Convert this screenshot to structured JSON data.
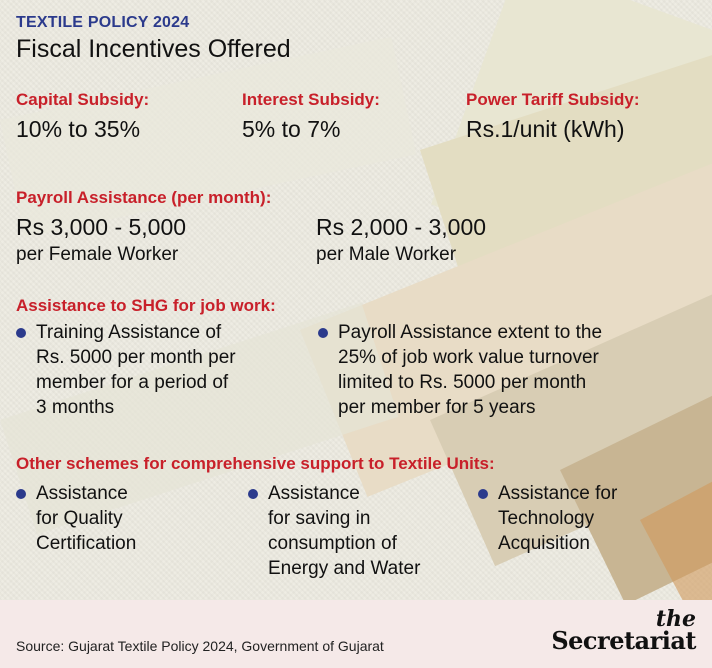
{
  "header": {
    "kicker": "TEXTILE POLICY 2024",
    "title": "Fiscal Incentives Offered"
  },
  "subsidies": [
    {
      "label": "Capital Subsidy:",
      "value": "10% to 35%"
    },
    {
      "label": "Interest Subsidy:",
      "value": "5% to 7%"
    },
    {
      "label": "Power Tariff Subsidy:",
      "value": "Rs.1/unit (kWh)"
    }
  ],
  "payroll": {
    "label": "Payroll Assistance (per month):",
    "female": {
      "amount": "Rs 3,000 - 5,000",
      "desc": "per Female Worker"
    },
    "male": {
      "amount": "Rs 2,000 - 3,000",
      "desc": "per Male Worker"
    }
  },
  "shg": {
    "label": "Assistance to SHG for job work:",
    "items": [
      [
        "Training Assistance of",
        "Rs. 5000 per month per",
        "member for a period of",
        "3 months"
      ],
      [
        "Payroll Assistance extent to the",
        "25% of job work value turnover",
        "limited to Rs. 5000 per month",
        "per member for 5 years"
      ]
    ]
  },
  "other": {
    "label": "Other schemes for comprehensive support to Textile Units:",
    "items": [
      [
        "Assistance",
        "for Quality",
        "Certification"
      ],
      [
        "Assistance",
        "for saving in",
        "consumption of",
        "Energy and Water"
      ],
      [
        "Assistance for",
        "Technology",
        "Acquisition"
      ]
    ]
  },
  "footer": {
    "source": "Source: Gujarat Textile Policy 2024, Government of Gujarat",
    "logo_top": "the",
    "logo_main": "Secretariat"
  },
  "colors": {
    "accent_blue": "#2b3a8c",
    "accent_red": "#c8202a",
    "footer_bg": "#f5e9e8"
  }
}
